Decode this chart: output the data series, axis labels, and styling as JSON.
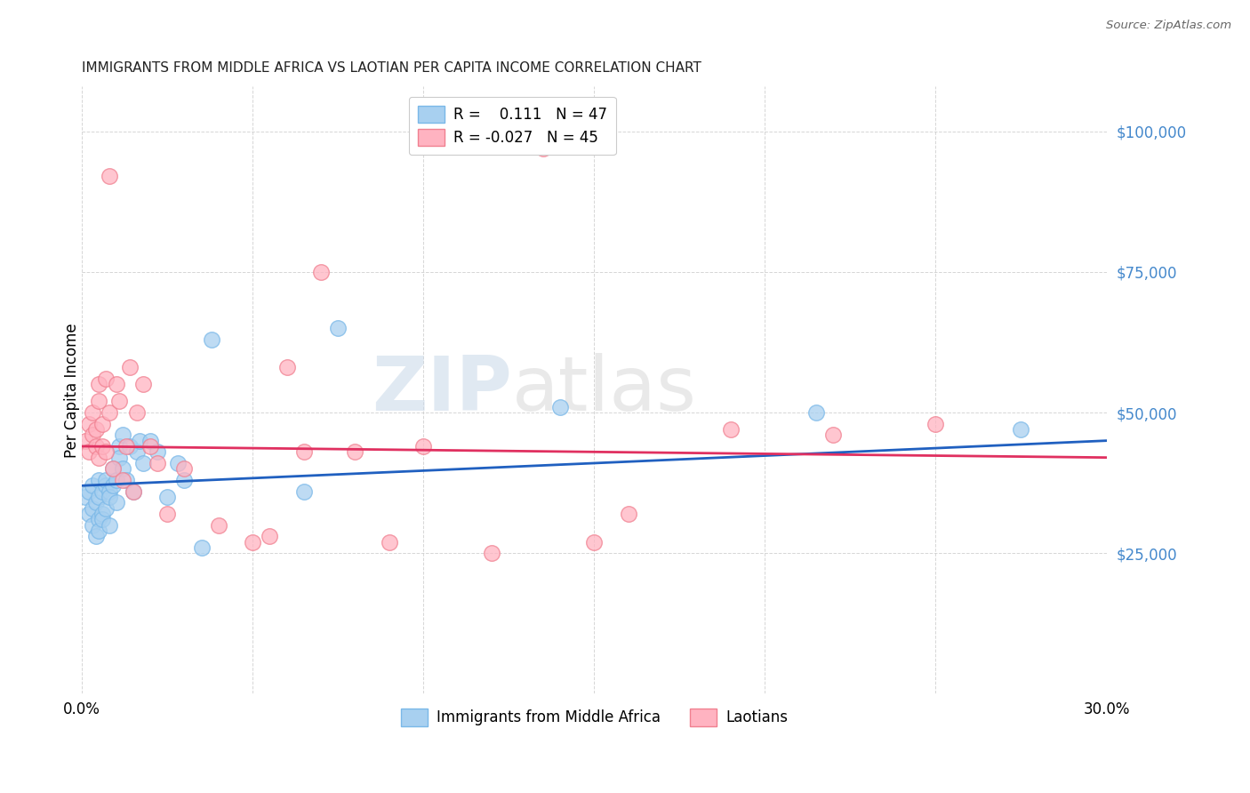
{
  "title": "IMMIGRANTS FROM MIDDLE AFRICA VS LAOTIAN PER CAPITA INCOME CORRELATION CHART",
  "source": "Source: ZipAtlas.com",
  "ylabel": "Per Capita Income",
  "yticks": [
    0,
    25000,
    50000,
    75000,
    100000
  ],
  "ytick_labels": [
    "",
    "$25,000",
    "$50,000",
    "$75,000",
    "$100,000"
  ],
  "xlim": [
    0.0,
    0.3
  ],
  "ylim": [
    0,
    108000
  ],
  "legend1_label": "R =    0.111   N = 47",
  "legend2_label": "R = -0.027   N = 45",
  "legend_bottom1": "Immigrants from Middle Africa",
  "legend_bottom2": "Laotians",
  "blue_scatter_color": "#a8d0f0",
  "blue_edge_color": "#7ab8e8",
  "pink_scatter_color": "#ffb3c1",
  "pink_edge_color": "#f08090",
  "blue_line_color": "#2060c0",
  "pink_line_color": "#e03060",
  "watermark": "ZIPatlas",
  "blue_scatter_x": [
    0.001,
    0.002,
    0.002,
    0.003,
    0.003,
    0.003,
    0.004,
    0.004,
    0.005,
    0.005,
    0.005,
    0.005,
    0.006,
    0.006,
    0.006,
    0.007,
    0.007,
    0.007,
    0.008,
    0.008,
    0.008,
    0.009,
    0.009,
    0.01,
    0.01,
    0.011,
    0.011,
    0.012,
    0.012,
    0.013,
    0.014,
    0.015,
    0.016,
    0.017,
    0.018,
    0.02,
    0.022,
    0.025,
    0.028,
    0.03,
    0.035,
    0.038,
    0.065,
    0.075,
    0.14,
    0.215,
    0.275
  ],
  "blue_scatter_y": [
    35000,
    36000,
    32000,
    33000,
    30000,
    37000,
    34000,
    28000,
    38000,
    31000,
    29000,
    35000,
    36000,
    32000,
    31000,
    37000,
    33000,
    38000,
    36000,
    30000,
    35000,
    40000,
    37000,
    38000,
    34000,
    44000,
    42000,
    40000,
    46000,
    38000,
    44000,
    36000,
    43000,
    45000,
    41000,
    45000,
    43000,
    35000,
    41000,
    38000,
    26000,
    63000,
    36000,
    65000,
    51000,
    50000,
    47000
  ],
  "pink_scatter_x": [
    0.001,
    0.002,
    0.002,
    0.003,
    0.003,
    0.004,
    0.004,
    0.005,
    0.005,
    0.005,
    0.006,
    0.006,
    0.007,
    0.007,
    0.008,
    0.008,
    0.009,
    0.01,
    0.011,
    0.012,
    0.013,
    0.014,
    0.015,
    0.016,
    0.018,
    0.02,
    0.022,
    0.025,
    0.03,
    0.04,
    0.05,
    0.055,
    0.06,
    0.065,
    0.07,
    0.08,
    0.09,
    0.1,
    0.12,
    0.135,
    0.15,
    0.16,
    0.19,
    0.22,
    0.25
  ],
  "pink_scatter_y": [
    45000,
    48000,
    43000,
    50000,
    46000,
    44000,
    47000,
    52000,
    42000,
    55000,
    48000,
    44000,
    56000,
    43000,
    92000,
    50000,
    40000,
    55000,
    52000,
    38000,
    44000,
    58000,
    36000,
    50000,
    55000,
    44000,
    41000,
    32000,
    40000,
    30000,
    27000,
    28000,
    58000,
    43000,
    75000,
    43000,
    27000,
    44000,
    25000,
    97000,
    27000,
    32000,
    47000,
    46000,
    48000
  ],
  "blue_trend_x": [
    0.0,
    0.3
  ],
  "blue_trend_y": [
    37000,
    45000
  ],
  "pink_trend_x": [
    0.0,
    0.3
  ],
  "pink_trend_y": [
    44000,
    42000
  ]
}
